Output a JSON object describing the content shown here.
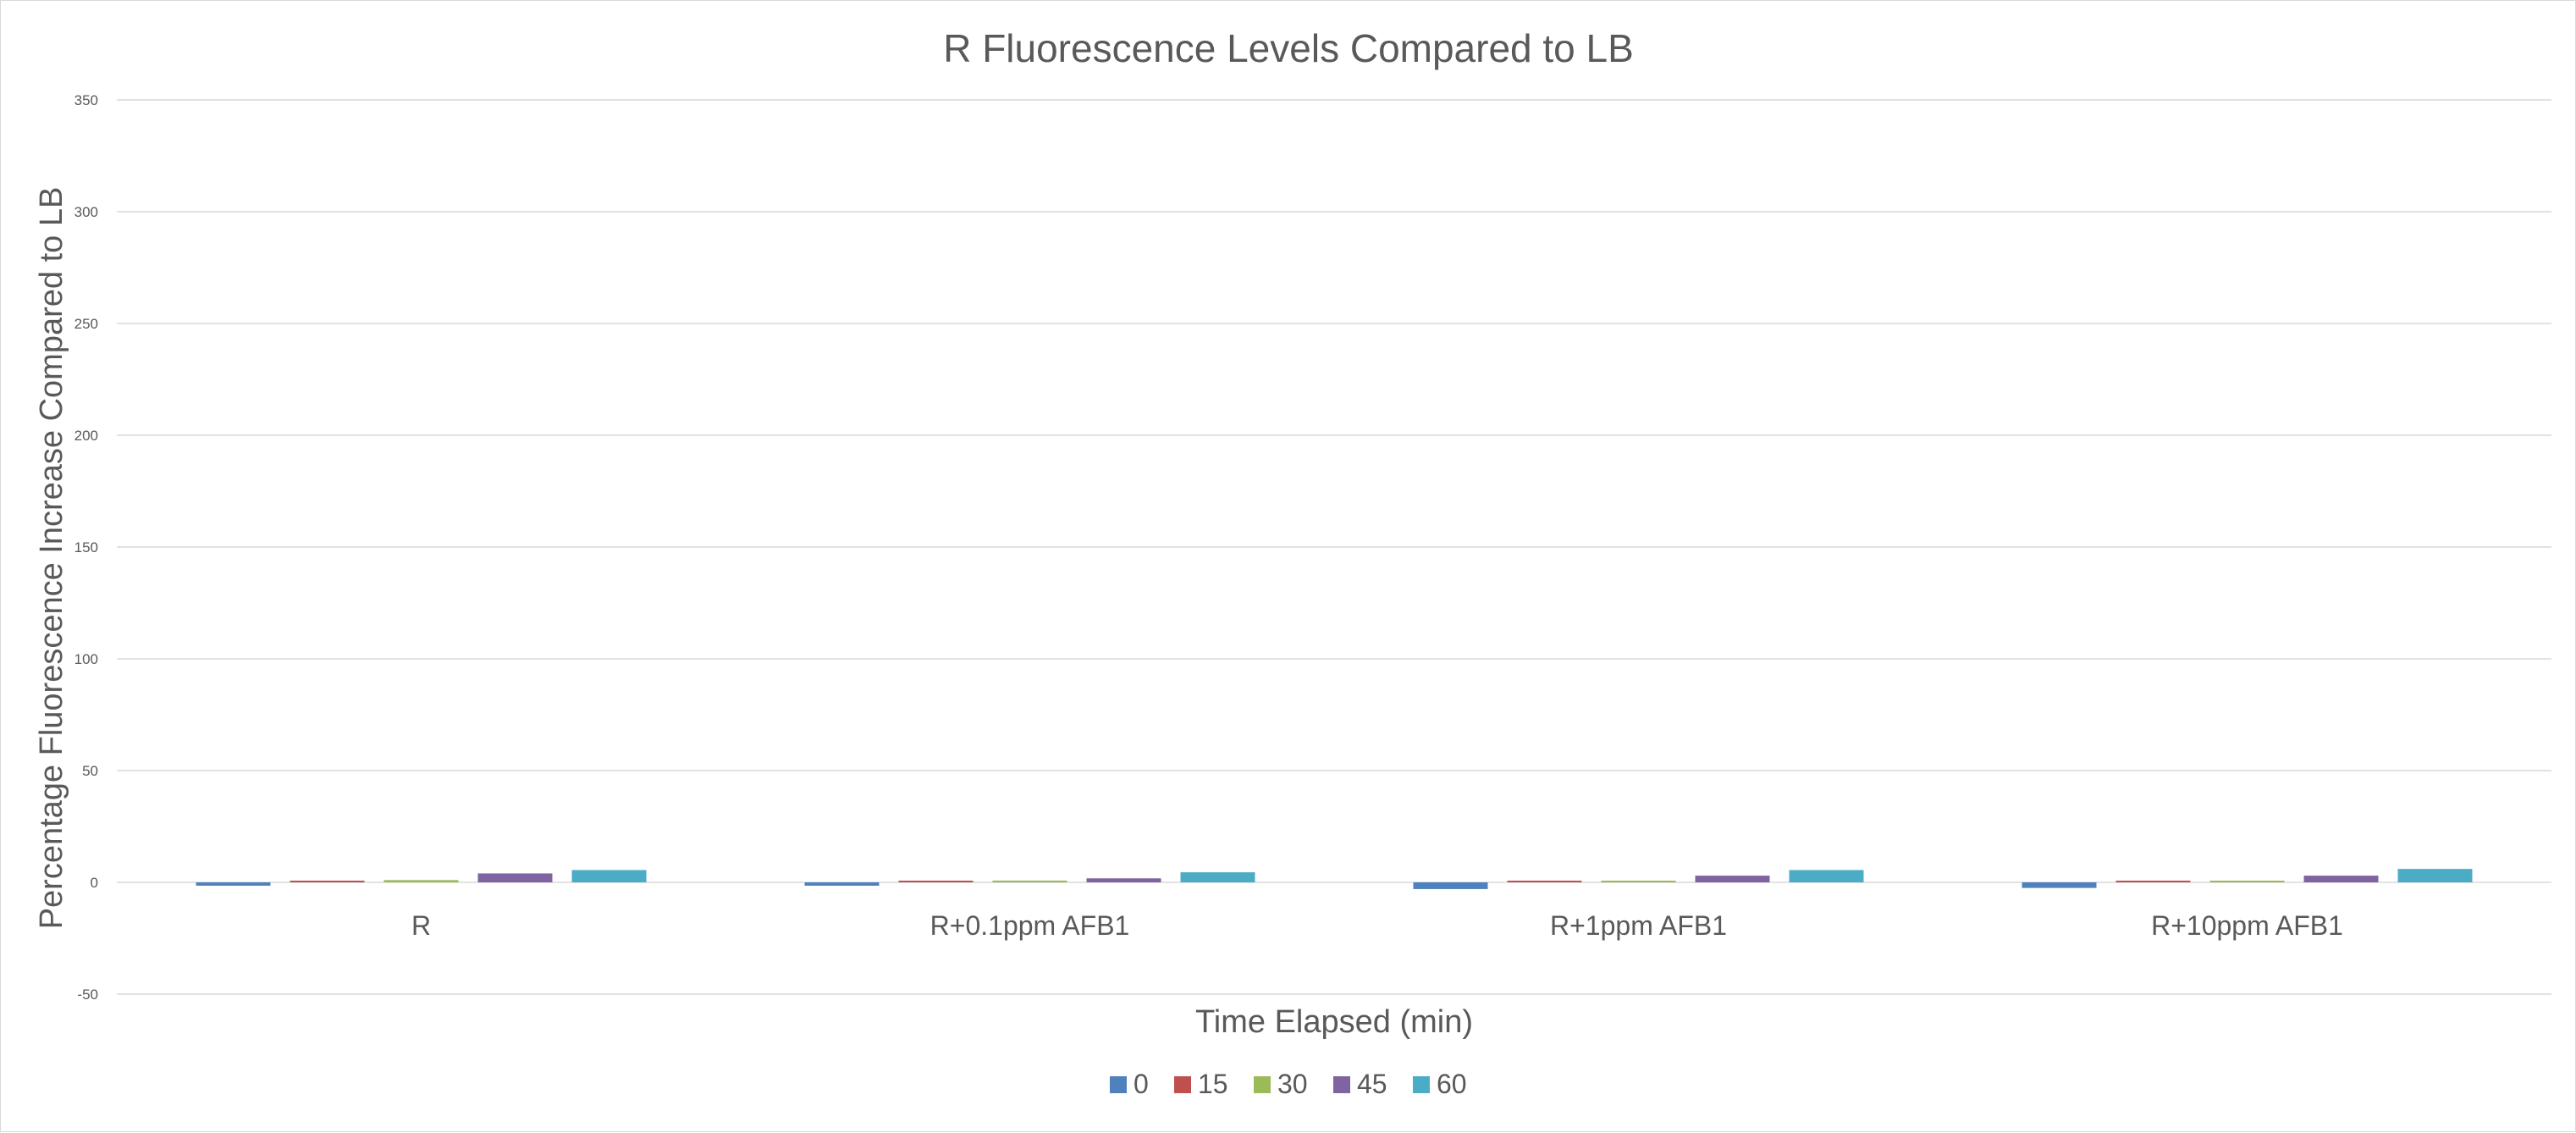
{
  "chart_data": {
    "type": "bar",
    "title": "R Fluorescence Levels Compared to LB",
    "xlabel": "Time Elapsed (min)",
    "ylabel": "Percentage Fluorescence Increase Compared to LB",
    "categories": [
      "R",
      "R+0.1ppm AFB1",
      "R+1ppm AFB1",
      "R+10ppm AFB1"
    ],
    "series": [
      {
        "name": "0",
        "color": "#4f81bd",
        "values": [
          -1.5,
          -1.5,
          -3.0,
          -2.5
        ]
      },
      {
        "name": "15",
        "color": "#c0504d",
        "values": [
          0.3,
          0.3,
          0.3,
          0.3
        ]
      },
      {
        "name": "30",
        "color": "#9bbb59",
        "values": [
          1.0,
          0.8,
          0.5,
          0.5
        ]
      },
      {
        "name": "45",
        "color": "#8064a2",
        "values": [
          4.0,
          1.8,
          3.0,
          3.0
        ]
      },
      {
        "name": "60",
        "color": "#4bacc6",
        "values": [
          5.5,
          4.5,
          5.5,
          6.0
        ]
      }
    ],
    "yticks": [
      -50,
      0,
      50,
      100,
      150,
      200,
      250,
      300,
      350
    ],
    "ylim": [
      -50,
      350
    ],
    "grid": true,
    "legend": "bottom"
  }
}
